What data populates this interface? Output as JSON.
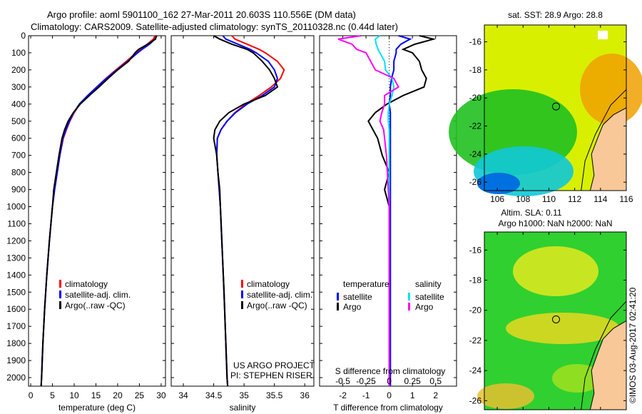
{
  "title_line1": "Argo profile: aoml 5901100_162 27-Mar-2011 20.603S 110.556E (DM data)",
  "title_line2": "Climatology: CARS2009. Satellite-adjusted climatology: synTS_20110328.nc (0.44d later)",
  "credits": [
    "US ARGO PROJECT",
    "PI: STEPHEN RISER"
  ],
  "timestamp": "©IMOS 03-Aug-2017 02:41:20",
  "colors": {
    "climatology": "#ff0000",
    "satellite": "#0000ff",
    "argo": "#000000",
    "sal_satellite": "#00e0ff",
    "sal_argo": "#ff00ff"
  },
  "chart_data": [
    {
      "type": "line",
      "xlabel": "temperature (deg C)",
      "ylabel": "",
      "xlim": [
        -0.5,
        31
      ],
      "ylim": [
        2050,
        0
      ],
      "xticks": [
        0,
        5,
        10,
        15,
        20,
        25,
        30
      ],
      "yticks": [
        0,
        100,
        200,
        300,
        400,
        500,
        600,
        700,
        800,
        900,
        1000,
        1100,
        1200,
        1300,
        1400,
        1500,
        1600,
        1700,
        1800,
        1900,
        2000
      ],
      "legend": [
        "climatology",
        "satellite-adj. clim.",
        "Argo(..raw -QC)"
      ],
      "depth": [
        0,
        20,
        50,
        80,
        100,
        150,
        200,
        250,
        300,
        350,
        400,
        450,
        500,
        550,
        600,
        700,
        800,
        900,
        1000,
        1200,
        1400,
        1600,
        1800,
        2000,
        2050
      ],
      "series": [
        {
          "name": "climatology",
          "values": [
            28.6,
            28.2,
            26.8,
            25.2,
            24.3,
            22,
            19.6,
            17.3,
            15.2,
            13.2,
            11.3,
            10,
            9,
            8.2,
            7.5,
            6.7,
            6.1,
            5.5,
            5,
            4.3,
            3.7,
            3.2,
            2.8,
            2.5,
            2.4
          ]
        },
        {
          "name": "satellite-adj. clim.",
          "values": [
            29,
            28.6,
            27.3,
            25.6,
            24.6,
            22.3,
            19.8,
            17.4,
            15.2,
            13.1,
            11.2,
            9.9,
            8.9,
            8.1,
            7.4,
            6.7,
            6.1,
            5.5,
            5,
            4.3,
            3.7,
            3.2,
            2.8,
            2.5,
            2.4
          ]
        },
        {
          "name": "Argo(..raw -QC)",
          "values": [
            28.9,
            28.7,
            26.9,
            24.8,
            24,
            22.5,
            20,
            17.8,
            15.7,
            13.5,
            11.4,
            9.8,
            8.6,
            7.8,
            7.2,
            6.5,
            5.9,
            5.3,
            5,
            4.3,
            3.7,
            3.2,
            2.8,
            2.5,
            2.4
          ]
        }
      ]
    },
    {
      "type": "line",
      "xlabel": "salinity",
      "xlim": [
        33.8,
        36.15
      ],
      "ylim": [
        2050,
        0
      ],
      "xticks": [
        34,
        34.5,
        35,
        35.5,
        36
      ],
      "legend": [
        "climatology",
        "satellite-adj. clim.",
        "Argo(..raw -QC)"
      ],
      "depth": [
        0,
        20,
        50,
        80,
        100,
        150,
        200,
        250,
        300,
        350,
        400,
        450,
        500,
        550,
        600,
        700,
        800,
        900,
        1000,
        1500,
        2000,
        2050
      ],
      "series": [
        {
          "name": "climatology",
          "values": [
            34.8,
            34.85,
            35.05,
            35.25,
            35.35,
            35.55,
            35.66,
            35.6,
            35.45,
            35.25,
            35.03,
            34.85,
            34.72,
            34.62,
            34.56,
            34.55,
            34.57,
            34.59,
            34.61,
            34.67,
            34.72,
            34.73
          ]
        },
        {
          "name": "satellite-adj. clim.",
          "values": [
            34.65,
            34.7,
            34.9,
            35.1,
            35.2,
            35.4,
            35.5,
            35.55,
            35.5,
            35.3,
            35.05,
            34.86,
            34.72,
            34.62,
            34.56,
            34.55,
            34.57,
            34.59,
            34.61,
            34.67,
            34.72,
            34.73
          ]
        },
        {
          "name": "Argo(..raw -QC)",
          "values": [
            34.5,
            34.6,
            34.8,
            35.05,
            35.15,
            35.3,
            35.42,
            35.5,
            35.55,
            35.35,
            35.0,
            34.75,
            34.6,
            34.52,
            34.5,
            34.55,
            34.57,
            34.6,
            34.61,
            34.67,
            34.72,
            34.73
          ]
        }
      ]
    },
    {
      "type": "line",
      "xlabel": "T difference from climatology",
      "x2label": "S difference from climatology",
      "xlim": [
        -3,
        2.9
      ],
      "ylim": [
        2050,
        0
      ],
      "xticks": [
        -2,
        -1,
        0,
        1,
        2
      ],
      "x2ticks": [
        -0.5,
        -0.25,
        0,
        0.25,
        0.5
      ],
      "legend_temperature": {
        "title": "temperature",
        "items": [
          "satellite",
          "Argo"
        ]
      },
      "legend_salinity": {
        "title": "salinity",
        "items": [
          "satellite",
          "Argo"
        ]
      },
      "depth": [
        0,
        20,
        50,
        80,
        100,
        150,
        200,
        250,
        300,
        350,
        400,
        450,
        500,
        550,
        600,
        700,
        800,
        900,
        1000,
        1500,
        2000,
        2050
      ],
      "series": [
        {
          "name": "T satellite",
          "values": [
            0.4,
            0.9,
            0.5,
            0.3,
            0.3,
            0.2,
            0.2,
            0.1,
            0.05,
            0.05,
            0.0,
            0.05,
            0.05,
            0.05,
            0.05,
            0.05,
            0.05,
            0.05,
            0.05,
            0.05,
            0.05,
            0.05
          ]
        },
        {
          "name": "T Argo",
          "values": [
            1.3,
            1.9,
            1.1,
            0.6,
            1.0,
            1.3,
            1.4,
            1.6,
            1.5,
            0.6,
            -0.1,
            -0.6,
            -0.9,
            -0.7,
            -0.5,
            -0.3,
            0,
            -0.2,
            0,
            0,
            0,
            0
          ]
        },
        {
          "name": "S satellite",
          "values": [
            -0.1,
            -0.15,
            -0.14,
            -0.12,
            -0.1,
            -0.05,
            -0.04,
            0.03,
            0.05,
            0.03,
            0.0,
            -0.01,
            -0.01,
            0,
            0,
            0,
            0,
            0,
            0,
            0,
            0,
            0
          ]
        },
        {
          "name": "S Argo",
          "values": [
            -0.3,
            -0.55,
            -0.4,
            -0.35,
            -0.25,
            -0.2,
            -0.15,
            0.05,
            0.1,
            -0.05,
            -0.05,
            -0.08,
            -0.1,
            -0.06,
            -0.05,
            -0.03,
            -0.02,
            -0.01,
            0,
            0,
            0,
            0
          ]
        }
      ]
    },
    {
      "type": "heatmap",
      "title": "sat. SST: 28.9 Argo: 28.8",
      "xticks": [
        106,
        108,
        110,
        112,
        114,
        116
      ],
      "yticks": [
        -16,
        -18,
        -20,
        -22,
        -24,
        -26
      ],
      "xlim": [
        105,
        116
      ],
      "ylim": [
        -26.6,
        -14.8
      ],
      "marker": [
        110.556,
        -20.603
      ]
    },
    {
      "type": "heatmap",
      "title": "Altim. SLA: 0.11",
      "subtitle": "Argo h1000: NaN h2000: NaN",
      "xticks": [
        106,
        108,
        110,
        112,
        114,
        116
      ],
      "yticks": [
        -16,
        -18,
        -20,
        -22,
        -24,
        -26
      ],
      "xlim": [
        105,
        116
      ],
      "ylim": [
        -26.6,
        -14.8
      ],
      "marker": [
        110.556,
        -20.603
      ]
    }
  ]
}
